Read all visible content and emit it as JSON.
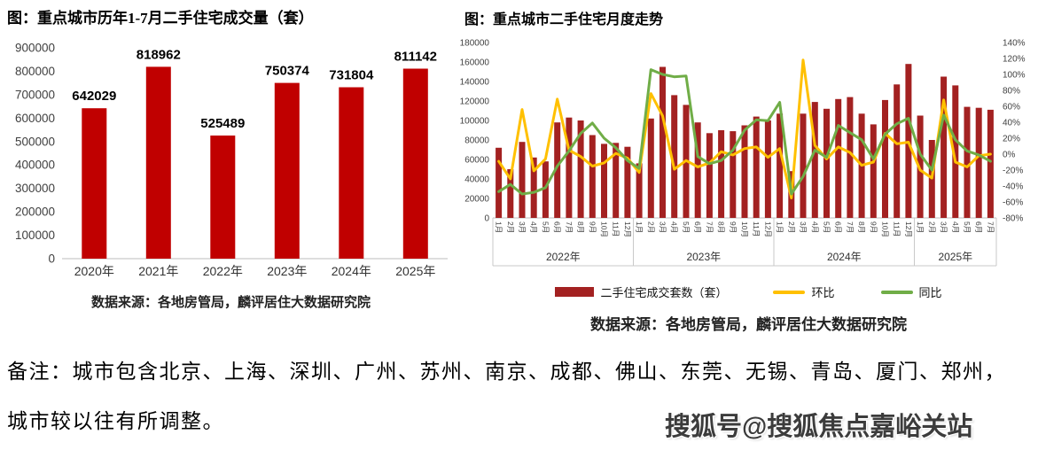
{
  "note": {
    "line1": "备注：城市包含北京、上海、深圳、广州、苏州、南京、成都、佛山、东莞、无锡、青岛、厦门、郑州，",
    "line2": "城市较以往有所调整。"
  },
  "watermark": "搜狐号@搜狐焦点嘉峪关站",
  "chart_data": [
    {
      "type": "bar",
      "title": "图：重点城市历年1-7月二手住宅成交量（套）",
      "source": "数据来源：各地房管局，麟评居住大数据研究院",
      "bar_color": "#C00000",
      "categories": [
        "2020年",
        "2021年",
        "2022年",
        "2023年",
        "2024年",
        "2025年"
      ],
      "values": [
        642029,
        818962,
        525489,
        750374,
        731804,
        811142
      ],
      "xlabel": "",
      "ylabel": "",
      "ylim": [
        0,
        900000
      ],
      "ytick_step": 100000,
      "grid": false,
      "data_labels": true
    },
    {
      "type": "combo",
      "title": "图：重点城市二手住宅月度走势",
      "source": "数据来源：各地房管局，麟评居住大数据研究院",
      "left_axis": {
        "min": 0,
        "max": 180000,
        "step": 20000
      },
      "right_axis": {
        "min": -80,
        "max": 140,
        "step": 20,
        "suffix": "%"
      },
      "legend_position": "bottom",
      "grid": false,
      "groups": [
        {
          "label": "2022年",
          "months": [
            "1月",
            "2月",
            "3月",
            "4月",
            "5月",
            "6月",
            "7月",
            "8月",
            "9月",
            "10月",
            "11月",
            "12月"
          ]
        },
        {
          "label": "2023年",
          "months": [
            "1月",
            "2月",
            "3月",
            "4月",
            "5月",
            "6月",
            "7月",
            "8月",
            "9月",
            "10月",
            "11月",
            "12月"
          ]
        },
        {
          "label": "2024年",
          "months": [
            "1月",
            "2月",
            "3月",
            "4月",
            "5月",
            "6月",
            "7月",
            "8月",
            "9月",
            "10月",
            "11月",
            "12月"
          ]
        },
        {
          "label": "2025年",
          "months": [
            "1月",
            "2月",
            "3月",
            "4月",
            "5月",
            "6月",
            "7月"
          ]
        }
      ],
      "series": [
        {
          "name": "二手住宅成交套数（套）",
          "type": "bar",
          "axis": "left",
          "color": "#A32121",
          "values": [
            72000,
            50000,
            78000,
            62000,
            58000,
            98000,
            103000,
            100000,
            85000,
            76000,
            77000,
            73000,
            56000,
            102000,
            155000,
            126000,
            116000,
            98000,
            87000,
            90000,
            89000,
            95000,
            104000,
            100000,
            107000,
            48000,
            107000,
            119000,
            112000,
            122000,
            124000,
            107000,
            96000,
            121000,
            137000,
            158000,
            105000,
            80000,
            145000,
            136000,
            114000,
            113000,
            111000
          ]
        },
        {
          "name": "环比",
          "type": "line",
          "axis": "right",
          "color": "#FFC000",
          "values": [
            -9,
            -31,
            56,
            -21,
            -6,
            69,
            5,
            -3,
            -15,
            -11,
            1,
            -5,
            -23,
            76,
            48,
            -19,
            -8,
            -16,
            -11,
            3,
            -1,
            7,
            9,
            -4,
            7,
            -55,
            118,
            11,
            -6,
            9,
            2,
            -14,
            -10,
            26,
            13,
            15,
            -20,
            -30,
            68,
            -10,
            -16,
            -2,
            0
          ]
        },
        {
          "name": "同比",
          "type": "line",
          "axis": "right",
          "color": "#70AD47",
          "values": [
            -47,
            -38,
            -50,
            -48,
            -42,
            -15,
            4,
            26,
            39,
            20,
            8,
            -8,
            -18,
            106,
            100,
            97,
            98,
            -3,
            -12,
            -8,
            5,
            30,
            43,
            42,
            65,
            -50,
            -28,
            5,
            -4,
            36,
            27,
            18,
            -6,
            25,
            38,
            45,
            0,
            -20,
            49,
            18,
            4,
            -1,
            -9
          ]
        }
      ]
    }
  ]
}
